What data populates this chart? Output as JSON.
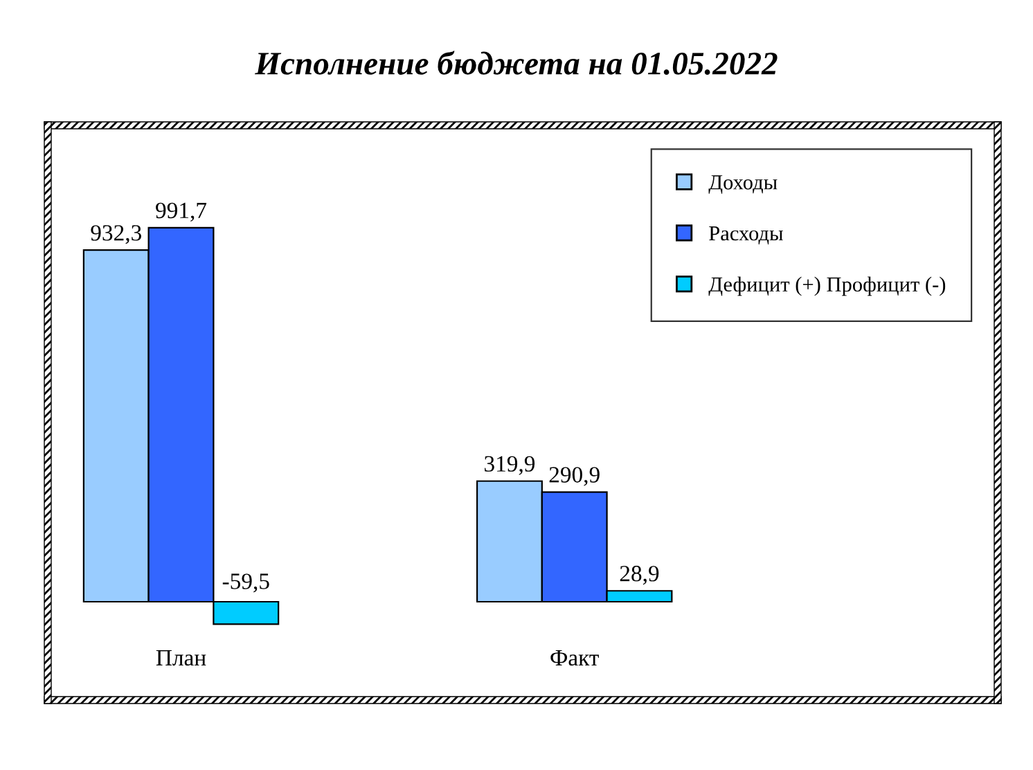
{
  "chart_data": {
    "type": "bar",
    "title": "Исполнение бюджета на 01.05.2022",
    "categories": [
      "План",
      "Факт"
    ],
    "series": [
      {
        "name": "Доходы",
        "color": "#99ccff",
        "values": [
          932.3,
          319.9
        ],
        "value_labels": [
          "932,3",
          "319,9"
        ]
      },
      {
        "name": "Расходы",
        "color": "#3366ff",
        "values": [
          991.7,
          290.9
        ],
        "value_labels": [
          "991,7",
          "290,9"
        ]
      },
      {
        "name": "Дефицит (+) Профицит (-)",
        "color": "#00ccff",
        "values": [
          -59.5,
          28.9
        ],
        "value_labels": [
          "-59,5",
          "28,9"
        ]
      }
    ],
    "legend": "top right",
    "grid": false
  }
}
